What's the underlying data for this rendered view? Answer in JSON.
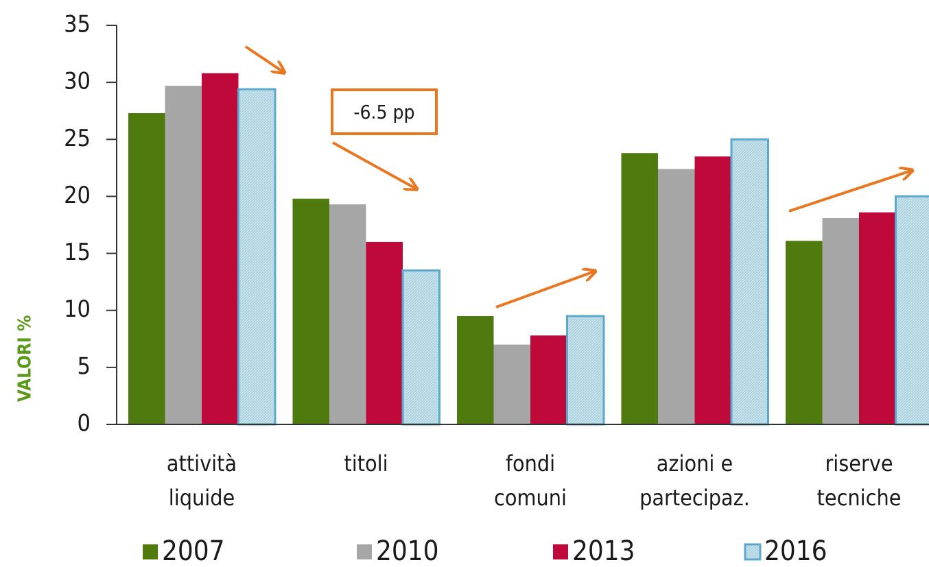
{
  "chart_data": {
    "type": "bar",
    "y_axis_label": "VALORI %",
    "annotation": "-6.5 pp",
    "categories": [
      [
        "attività",
        "liquide"
      ],
      [
        "titoli"
      ],
      [
        "fondi",
        "comuni"
      ],
      [
        "azioni e",
        "partecipaz."
      ],
      [
        "riserve",
        "tecniche"
      ]
    ],
    "series": [
      {
        "name": "2007",
        "color": "#4e7a0e",
        "values": [
          27.3,
          19.8,
          9.5,
          23.8,
          16.1
        ]
      },
      {
        "name": "2010",
        "color": "#a6a6a6",
        "values": [
          29.7,
          19.3,
          7.0,
          22.4,
          18.1
        ]
      },
      {
        "name": "2013",
        "color": "#c0093b",
        "values": [
          30.8,
          16.0,
          7.8,
          23.5,
          18.6
        ]
      },
      {
        "name": "2016",
        "color": "#b8dce8",
        "values": [
          29.4,
          13.5,
          9.5,
          25.0,
          20.0
        ]
      }
    ],
    "ylim": [
      0,
      35
    ],
    "yticks": [
      0,
      5,
      10,
      15,
      20,
      25,
      30,
      35
    ],
    "grid": false,
    "legend": "bottom"
  }
}
